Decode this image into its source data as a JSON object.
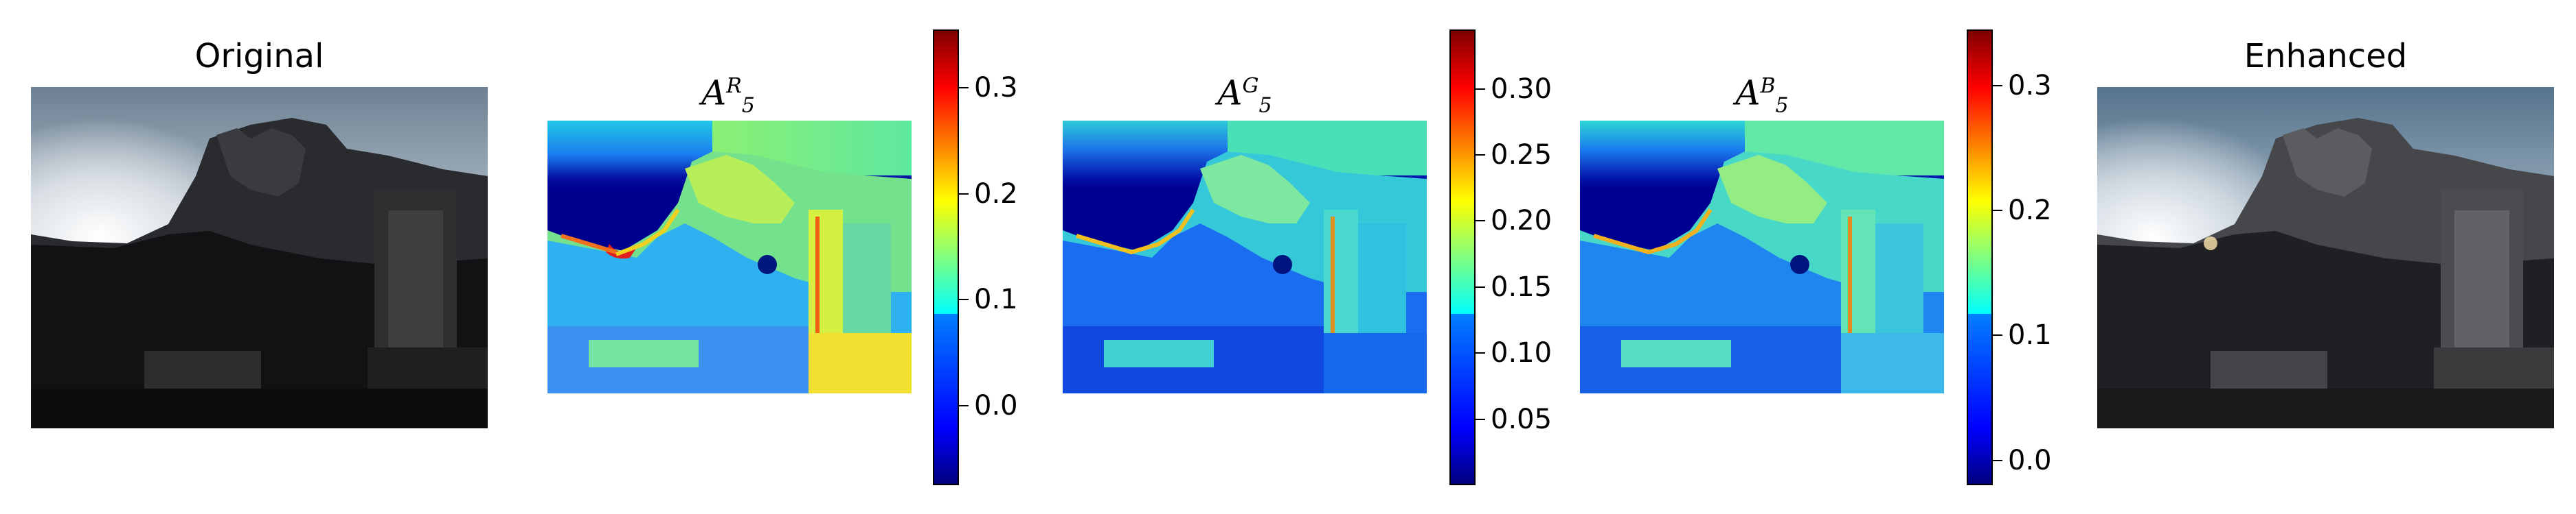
{
  "panels": {
    "original": {
      "title": "Original"
    },
    "enhanced": {
      "title": "Enhanced"
    },
    "maps": [
      {
        "symbol": "A",
        "superscript": "R",
        "subscript": "5",
        "colorbar": {
          "ticks": [
            "0.0",
            "0.1",
            "0.2",
            "0.3"
          ],
          "range": [
            -0.075,
            0.355
          ],
          "tick_values": [
            0.0,
            0.1,
            0.2,
            0.3
          ]
        }
      },
      {
        "symbol": "A",
        "superscript": "G",
        "subscript": "5",
        "colorbar": {
          "ticks": [
            "0.05",
            "0.10",
            "0.15",
            "0.20",
            "0.25",
            "0.30"
          ],
          "range": [
            0.0,
            0.345
          ],
          "tick_values": [
            0.05,
            0.1,
            0.15,
            0.2,
            0.25,
            0.3
          ]
        }
      },
      {
        "symbol": "A",
        "superscript": "B",
        "subscript": "5",
        "colorbar": {
          "ticks": [
            "0.0",
            "0.1",
            "0.2",
            "0.3"
          ],
          "range": [
            -0.02,
            0.345
          ],
          "tick_values": [
            0.0,
            0.1,
            0.2,
            0.3
          ]
        }
      }
    ]
  },
  "colormap": "jet"
}
